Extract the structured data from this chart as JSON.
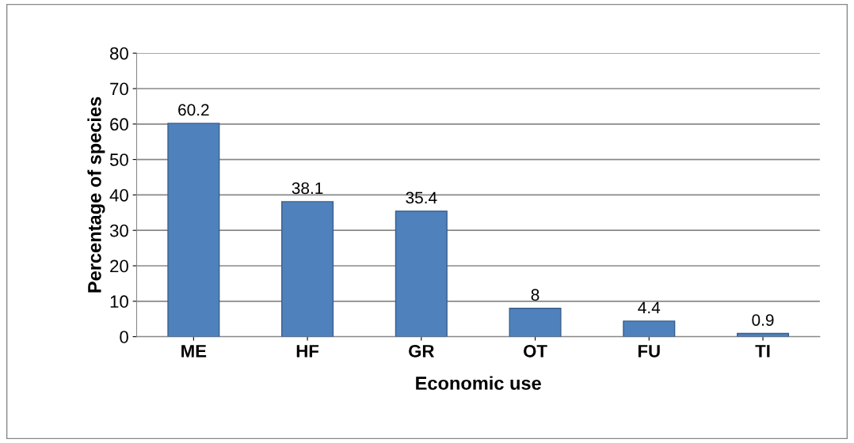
{
  "chart_data": {
    "type": "bar",
    "xlabel": "Economic use",
    "ylabel": "Percentage of species",
    "categories": [
      "ME",
      "HF",
      "GR",
      "OT",
      "FU",
      "TI"
    ],
    "values": [
      60.2,
      38.1,
      35.4,
      8,
      4.4,
      0.9
    ],
    "color": "#4f81bd",
    "ylim": [
      0,
      80
    ],
    "yticks": [
      0,
      10,
      20,
      30,
      40,
      50,
      60,
      70,
      80
    ],
    "grid": "y",
    "data_labels": true
  }
}
